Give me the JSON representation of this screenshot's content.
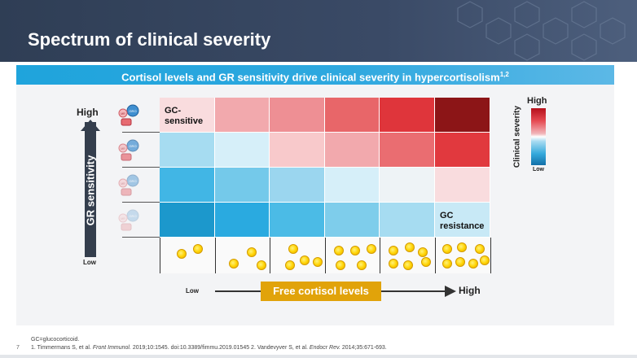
{
  "header": {
    "title": "Spectrum of clinical severity"
  },
  "banner": {
    "text": "Cortisol levels and GR sensitivity drive clinical severity in hypercortisolism",
    "superscript": "1,2"
  },
  "y_axis": {
    "label": "GR sensitivity",
    "high": "High",
    "low": "Low"
  },
  "x_axis": {
    "label": "Free cortisol levels",
    "low": "Low",
    "high": "High"
  },
  "legend": {
    "title": "Clinical severity",
    "high": "High",
    "low": "Low"
  },
  "heatmap": {
    "rows": [
      {
        "colors": [
          "#f9dcde",
          "#f2a9ad",
          "#ee8f94",
          "#e86669",
          "#df353b",
          "#8c1517"
        ],
        "label": "GC-\nsensitive",
        "label_col": 0
      },
      {
        "colors": [
          "#a6dcf1",
          "#d6eff9",
          "#f8c9cb",
          "#f2a9ad",
          "#ea6d71",
          "#e1393e"
        ]
      },
      {
        "colors": [
          "#41b6e5",
          "#74c9ea",
          "#9bd6ef",
          "#d6eff9",
          "#eef3f6",
          "#f9dcde"
        ]
      },
      {
        "colors": [
          "#1c98cc",
          "#2aaae0",
          "#4bbbe6",
          "#7ecdeb",
          "#a6dcf1",
          "#c8e9f6"
        ],
        "label": "GC\nresistance",
        "label_col": 5
      }
    ],
    "dot_counts": [
      2,
      3,
      4,
      5,
      6,
      7
    ]
  },
  "receptors": [
    {
      "opacity": 1.0,
      "label_a": "MR",
      "label_b": "GRO"
    },
    {
      "opacity": 0.7,
      "label_a": "MR",
      "label_b": "GRO"
    },
    {
      "opacity": 0.45,
      "label_a": "MR",
      "label_b": "GRO"
    },
    {
      "opacity": 0.25,
      "label_a": "MR",
      "label_b": "GRO"
    }
  ],
  "footnotes": {
    "abbreviation": "GC=glucocorticoid.",
    "ref1_prefix": "1. Timmermans S, et al. ",
    "ref1_journal": "Front Immunol.",
    "ref1_rest": " 2019;10:1545. doi:10.3389/fimmu.2019.01545  2. Vandevyver S, et al. ",
    "ref2_journal": "Endocr Rev.",
    "ref2_rest": " 2014;35:671-693."
  },
  "page_number": "7",
  "colors": {
    "header_bg": "#2f3e55",
    "banner_bg": "#1fa4dc",
    "x_label_bg": "#e1a30a",
    "arrow": "#343e4d"
  }
}
